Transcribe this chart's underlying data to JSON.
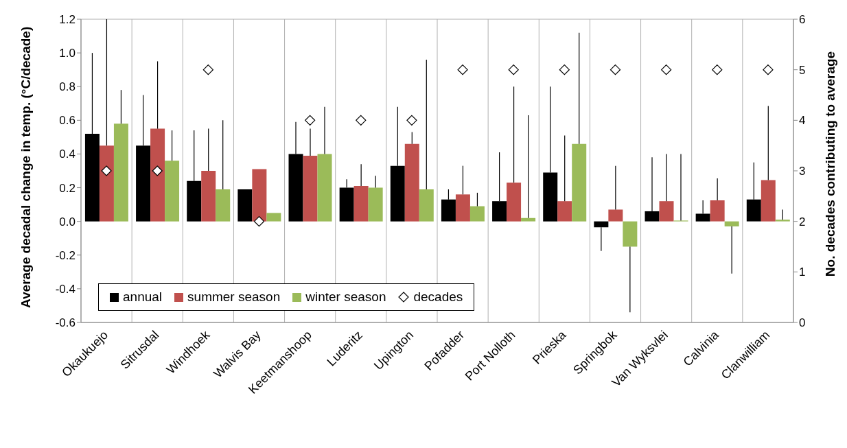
{
  "chart_data": {
    "type": "bar",
    "ylabel": "Average decadal change in temp. (°C/decade)",
    "y2label": "No. decades contributing to average",
    "categories": [
      "Okaukuejo",
      "Sitrusdal",
      "Windhoek",
      "Walvis Bay",
      "Keetmanshoop",
      "Luderitz",
      "Upington",
      "Pofadder",
      "Port Nolloth",
      "Prieska",
      "Springbok",
      "Van Wyksvlei",
      "Calvinia",
      "Clanwilliam"
    ],
    "series": [
      {
        "name": "annual",
        "color": "#000000",
        "values": [
          0.52,
          0.45,
          0.24,
          0.19,
          0.4,
          0.2,
          0.33,
          0.13,
          0.12,
          0.29,
          -0.035,
          0.06,
          0.045,
          0.13
        ],
        "errors": [
          [
            0.52,
            1.0
          ],
          [
            0.45,
            0.75
          ],
          [
            0.24,
            0.54
          ],
          null,
          [
            0.4,
            0.59
          ],
          [
            0.2,
            0.25
          ],
          [
            0.33,
            0.68
          ],
          [
            0.13,
            0.19
          ],
          [
            0.12,
            0.41
          ],
          [
            0.29,
            0.8
          ],
          [
            -0.175,
            -0.035
          ],
          [
            0.06,
            0.38
          ],
          [
            0.045,
            0.125
          ],
          [
            0.13,
            0.35
          ]
        ]
      },
      {
        "name": "summer season",
        "color": "#c0504d",
        "values": [
          0.45,
          0.55,
          0.3,
          0.31,
          0.39,
          0.21,
          0.46,
          0.16,
          0.23,
          0.12,
          0.07,
          0.12,
          0.125,
          0.245
        ],
        "errors": [
          [
            0.45,
            1.2
          ],
          [
            0.55,
            0.95
          ],
          [
            0.3,
            0.55
          ],
          null,
          [
            0.39,
            0.55
          ],
          [
            0.21,
            0.34
          ],
          [
            0.46,
            0.53
          ],
          [
            0.16,
            0.33
          ],
          [
            0.23,
            0.8
          ],
          [
            0.12,
            0.51
          ],
          [
            0.07,
            0.33
          ],
          [
            0.12,
            0.4
          ],
          [
            0.125,
            0.255
          ],
          [
            0.245,
            0.685
          ]
        ]
      },
      {
        "name": "winter season",
        "color": "#9bbb59",
        "values": [
          0.58,
          0.36,
          0.19,
          0.05,
          0.4,
          0.2,
          0.19,
          0.09,
          0.02,
          0.46,
          -0.15,
          0.005,
          -0.03,
          0.01
        ],
        "errors": [
          [
            0.58,
            0.78
          ],
          [
            0.36,
            0.54
          ],
          [
            0.19,
            0.6
          ],
          null,
          [
            0.4,
            0.68
          ],
          [
            0.2,
            0.27
          ],
          [
            0.19,
            0.96
          ],
          [
            0.09,
            0.17
          ],
          [
            0.02,
            0.63
          ],
          [
            0.46,
            1.12
          ],
          [
            -0.54,
            -0.15
          ],
          [
            0.005,
            0.4
          ],
          [
            -0.31,
            -0.03
          ],
          [
            0.01,
            0.07
          ]
        ]
      },
      {
        "name": "decades",
        "type": "scatter",
        "axis": "y2",
        "marker": "diamond",
        "color": "#000000",
        "values": [
          3,
          3,
          5,
          2,
          4,
          4,
          4,
          5,
          5,
          5,
          5,
          5,
          5,
          5
        ]
      }
    ],
    "ylim": [
      -0.6,
      1.2
    ],
    "yticks": [
      -0.6,
      -0.4,
      -0.2,
      {
        "value": 0,
        "label": "0.0"
      },
      0.2,
      0.4,
      0.6,
      0.8,
      {
        "value": 1,
        "label": "1.0"
      },
      1.2
    ],
    "y2lim": [
      0,
      6
    ],
    "y2ticks": [
      0,
      1,
      2,
      3,
      4,
      5,
      6
    ],
    "grid": true,
    "legend": "bottom left"
  }
}
